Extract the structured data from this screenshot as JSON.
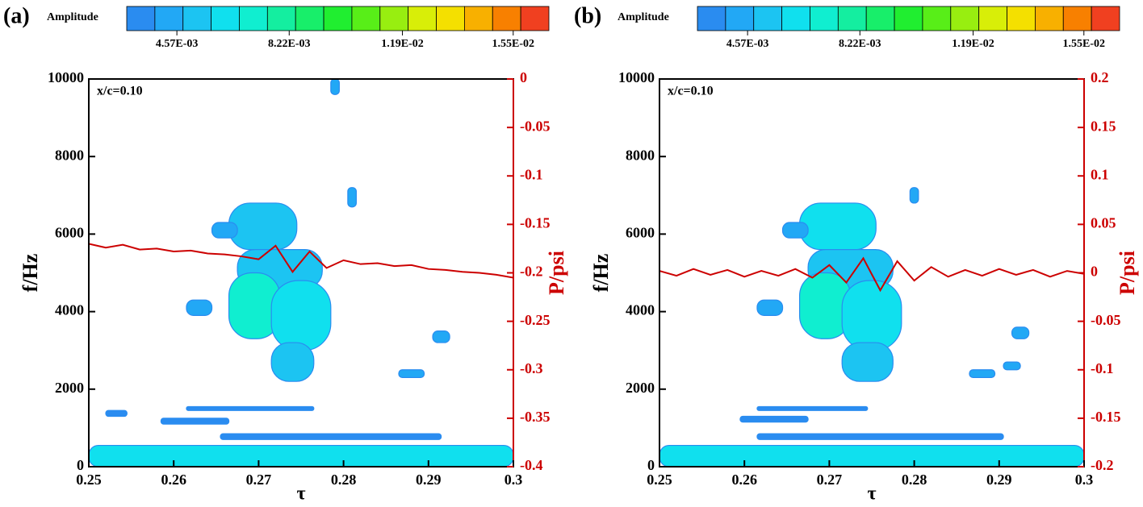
{
  "chart_data": [
    {
      "type": "spectrogram",
      "panel_label": "(a)",
      "annotation": "x/c=0.10",
      "xlabel": "τ",
      "ylabel": "f/Hz",
      "y2label": "P/psi",
      "colorbar": {
        "title": "Amplitude",
        "lim": [
          0.00294,
          0.01666
        ],
        "ticks": [
          {
            "value": 0.00457,
            "label": "4.57E-03"
          },
          {
            "value": 0.00822,
            "label": "8.22E-03"
          },
          {
            "value": 0.0119,
            "label": "1.19E-02"
          },
          {
            "value": 0.0155,
            "label": "1.55E-02"
          }
        ],
        "colors": [
          "#2a8cf0",
          "#22a8f5",
          "#1cc4f2",
          "#10e0ee",
          "#10eed0",
          "#14eea0",
          "#18ee6a",
          "#20ee30",
          "#58ee18",
          "#98ee10",
          "#d8ee08",
          "#f4e000",
          "#f8b000",
          "#f88000",
          "#f04020"
        ]
      },
      "xlim": [
        0.25,
        0.3
      ],
      "xticks": [
        0.25,
        0.26,
        0.27,
        0.28,
        0.29,
        0.3
      ],
      "ylim": [
        0,
        10000
      ],
      "yticks": [
        0,
        2000,
        4000,
        6000,
        8000,
        10000
      ],
      "y2lim": [
        -0.4,
        0
      ],
      "y2ticks": [
        -0.4,
        -0.35,
        -0.3,
        -0.25,
        -0.2,
        -0.15,
        -0.1,
        -0.05,
        0
      ],
      "regions": [
        {
          "tau": [
            0.25,
            0.3
          ],
          "f": [
            0,
            550
          ],
          "amplitude": 0.006
        },
        {
          "tau": [
            0.2655,
            0.2915
          ],
          "f": [
            700,
            850
          ],
          "amplitude": 0.0035
        },
        {
          "tau": [
            0.252,
            0.2545
          ],
          "f": [
            1300,
            1450
          ],
          "amplitude": 0.0035
        },
        {
          "tau": [
            0.2585,
            0.2665
          ],
          "f": [
            1100,
            1250
          ],
          "amplitude": 0.0035
        },
        {
          "tau": [
            0.2615,
            0.2765
          ],
          "f": [
            1450,
            1550
          ],
          "amplitude": 0.0035
        },
        {
          "tau": [
            0.2665,
            0.2745
          ],
          "f": [
            5600,
            6800
          ],
          "amplitude": 0.0055
        },
        {
          "tau": [
            0.2675,
            0.2775
          ],
          "f": [
            4600,
            5600
          ],
          "amplitude": 0.005
        },
        {
          "tau": [
            0.2665,
            0.2725
          ],
          "f": [
            3300,
            5000
          ],
          "amplitude": 0.007
        },
        {
          "tau": [
            0.2715,
            0.2785
          ],
          "f": [
            3000,
            4800
          ],
          "amplitude": 0.0065
        },
        {
          "tau": [
            0.2715,
            0.2765
          ],
          "f": [
            2200,
            3200
          ],
          "amplitude": 0.005
        },
        {
          "tau": [
            0.2615,
            0.2645
          ],
          "f": [
            3900,
            4300
          ],
          "amplitude": 0.004
        },
        {
          "tau": [
            0.2645,
            0.2675
          ],
          "f": [
            5900,
            6300
          ],
          "amplitude": 0.004
        },
        {
          "tau": [
            0.2805,
            0.2815
          ],
          "f": [
            6700,
            7200
          ],
          "amplitude": 0.004
        },
        {
          "tau": [
            0.2865,
            0.2895
          ],
          "f": [
            2300,
            2500
          ],
          "amplitude": 0.004
        },
        {
          "tau": [
            0.2905,
            0.2925
          ],
          "f": [
            3200,
            3500
          ],
          "amplitude": 0.004
        },
        {
          "tau": [
            0.2785,
            0.2795
          ],
          "f": [
            9600,
            10000
          ],
          "amplitude": 0.004
        }
      ],
      "pressure": {
        "color": "#cc0000",
        "axis": "y2",
        "x": [
          0.25,
          0.252,
          0.254,
          0.256,
          0.258,
          0.26,
          0.262,
          0.264,
          0.266,
          0.268,
          0.27,
          0.272,
          0.274,
          0.276,
          0.278,
          0.28,
          0.282,
          0.284,
          0.286,
          0.288,
          0.29,
          0.292,
          0.294,
          0.296,
          0.298,
          0.3
        ],
        "values": [
          -0.17,
          -0.174,
          -0.171,
          -0.176,
          -0.175,
          -0.178,
          -0.177,
          -0.18,
          -0.181,
          -0.183,
          -0.186,
          -0.172,
          -0.199,
          -0.178,
          -0.195,
          -0.187,
          -0.191,
          -0.19,
          -0.193,
          -0.192,
          -0.196,
          -0.197,
          -0.199,
          -0.2,
          -0.202,
          -0.205
        ]
      }
    },
    {
      "type": "spectrogram",
      "panel_label": "(b)",
      "annotation": "x/c=0.10",
      "xlabel": "τ",
      "ylabel": "f/Hz",
      "y2label": "P/psi",
      "colorbar": {
        "title": "Amplitude",
        "lim": [
          0.00294,
          0.01666
        ],
        "ticks": [
          {
            "value": 0.00457,
            "label": "4.57E-03"
          },
          {
            "value": 0.00822,
            "label": "8.22E-03"
          },
          {
            "value": 0.0119,
            "label": "1.19E-02"
          },
          {
            "value": 0.0155,
            "label": "1.55E-02"
          }
        ],
        "colors": [
          "#2a8cf0",
          "#22a8f5",
          "#1cc4f2",
          "#10e0ee",
          "#10eed0",
          "#14eea0",
          "#18ee6a",
          "#20ee30",
          "#58ee18",
          "#98ee10",
          "#d8ee08",
          "#f4e000",
          "#f8b000",
          "#f88000",
          "#f04020"
        ]
      },
      "xlim": [
        0.25,
        0.3
      ],
      "xticks": [
        0.25,
        0.26,
        0.27,
        0.28,
        0.29,
        0.3
      ],
      "ylim": [
        0,
        10000
      ],
      "yticks": [
        0,
        2000,
        4000,
        6000,
        8000,
        10000
      ],
      "y2lim": [
        -0.2,
        0.2
      ],
      "y2ticks": [
        -0.2,
        -0.15,
        -0.1,
        -0.05,
        0,
        0.05,
        0.1,
        0.15,
        0.2
      ],
      "regions": [
        {
          "tau": [
            0.25,
            0.3
          ],
          "f": [
            0,
            550
          ],
          "amplitude": 0.006
        },
        {
          "tau": [
            0.2615,
            0.2905
          ],
          "f": [
            700,
            850
          ],
          "amplitude": 0.0035
        },
        {
          "tau": [
            0.2595,
            0.2675
          ],
          "f": [
            1150,
            1300
          ],
          "amplitude": 0.0035
        },
        {
          "tau": [
            0.2615,
            0.2745
          ],
          "f": [
            1450,
            1550
          ],
          "amplitude": 0.0035
        },
        {
          "tau": [
            0.2665,
            0.2755
          ],
          "f": [
            5600,
            6800
          ],
          "amplitude": 0.006
        },
        {
          "tau": [
            0.2675,
            0.2775
          ],
          "f": [
            4600,
            5600
          ],
          "amplitude": 0.0055
        },
        {
          "tau": [
            0.2665,
            0.2725
          ],
          "f": [
            3300,
            5000
          ],
          "amplitude": 0.0068
        },
        {
          "tau": [
            0.2715,
            0.2785
          ],
          "f": [
            3000,
            4800
          ],
          "amplitude": 0.0065
        },
        {
          "tau": [
            0.2715,
            0.2775
          ],
          "f": [
            2200,
            3200
          ],
          "amplitude": 0.005
        },
        {
          "tau": [
            0.2615,
            0.2645
          ],
          "f": [
            3900,
            4300
          ],
          "amplitude": 0.004
        },
        {
          "tau": [
            0.2645,
            0.2675
          ],
          "f": [
            5900,
            6300
          ],
          "amplitude": 0.004
        },
        {
          "tau": [
            0.2795,
            0.2805
          ],
          "f": [
            6800,
            7200
          ],
          "amplitude": 0.004
        },
        {
          "tau": [
            0.2865,
            0.2895
          ],
          "f": [
            2300,
            2500
          ],
          "amplitude": 0.004
        },
        {
          "tau": [
            0.2905,
            0.2925
          ],
          "f": [
            2500,
            2700
          ],
          "amplitude": 0.004
        },
        {
          "tau": [
            0.2915,
            0.2935
          ],
          "f": [
            3300,
            3600
          ],
          "amplitude": 0.004
        }
      ],
      "pressure": {
        "color": "#cc0000",
        "axis": "y2",
        "x": [
          0.25,
          0.252,
          0.254,
          0.256,
          0.258,
          0.26,
          0.262,
          0.264,
          0.266,
          0.268,
          0.27,
          0.272,
          0.274,
          0.276,
          0.278,
          0.28,
          0.282,
          0.284,
          0.286,
          0.288,
          0.29,
          0.292,
          0.294,
          0.296,
          0.298,
          0.3
        ],
        "values": [
          0.002,
          -0.003,
          0.004,
          -0.002,
          0.003,
          -0.004,
          0.002,
          -0.003,
          0.004,
          -0.005,
          0.008,
          -0.01,
          0.015,
          -0.018,
          0.012,
          -0.008,
          0.006,
          -0.004,
          0.003,
          -0.003,
          0.004,
          -0.002,
          0.003,
          -0.004,
          0.002,
          -0.001
        ]
      }
    }
  ]
}
